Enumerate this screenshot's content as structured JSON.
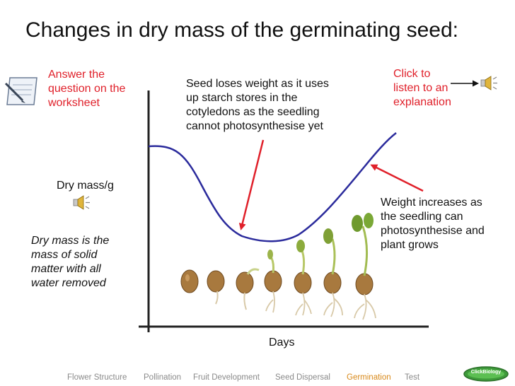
{
  "title": "Changes in dry mass of the germinating seed:",
  "worksheet_note": [
    "Answer the",
    "question on the",
    "worksheet"
  ],
  "loss_note": [
    "Seed loses weight as it uses",
    "up starch stores in the",
    "cotyledons as the seedling",
    "cannot photosynthesise yet"
  ],
  "listen_link": [
    "Click to",
    "listen to an",
    "explanation"
  ],
  "gain_note": [
    "Weight increases as",
    "the seedling can",
    "photosynthesise and",
    "plant grows"
  ],
  "definition": [
    "Dry mass is the",
    "mass of solid",
    "matter with all",
    "water removed"
  ],
  "chart_data": {
    "type": "line",
    "xlabel": "Days",
    "ylabel": "Dry mass/g",
    "note": "Curve starts high, dips to a minimum, then rises above the starting level (no numeric axis scale shown)."
  },
  "nav": {
    "items": [
      "Flower Structure",
      "Pollination",
      "Fruit Development",
      "Seed Dispersal",
      "Germination",
      "Test"
    ],
    "active": "Germination"
  },
  "logo_text": "ClickBiology",
  "icons": {
    "speaker": "speaker-icon",
    "worksheet": "notepad-pencil-icon",
    "seedling": "seedling-image"
  },
  "colors": {
    "curve": "#2b2b9c",
    "arrow": "#e0202a",
    "accent_text": "#e0202a",
    "nav_active": "#d8891a"
  }
}
